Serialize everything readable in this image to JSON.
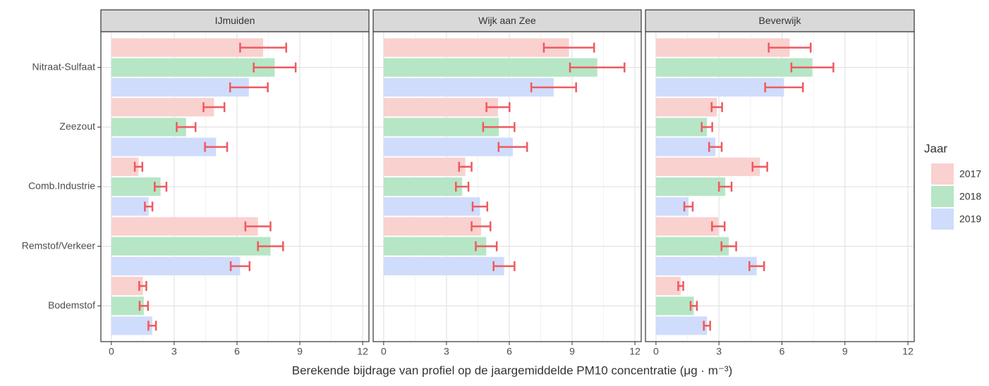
{
  "chart_data": {
    "type": "bar",
    "orientation": "horizontal",
    "xlabel": "Berekende bijdrage van profiel op de jaargemiddelde PM10 concentratie (μg · m⁻³)",
    "legend_title": "Jaar",
    "categories": [
      "Nitraat-Sulfaat",
      "Zeezout",
      "Comb.Industrie",
      "Remstof/Verkeer",
      "Bodemstof"
    ],
    "xlim": [
      -0.5,
      12.3
    ],
    "xticks": [
      0,
      3,
      6,
      9,
      12
    ],
    "grid": true,
    "error_color": "#ef5a5f",
    "series": [
      {
        "name": "2017",
        "color": "#f9d1cf"
      },
      {
        "name": "2018",
        "color": "#b6e6c5"
      },
      {
        "name": "2019",
        "color": "#cfdcfb"
      }
    ],
    "facets": [
      {
        "title": "IJmuiden",
        "series": [
          {
            "values": [
              7.25,
              4.9,
              1.3,
              7.0,
              1.5
            ],
            "errors": [
              1.1,
              0.5,
              0.18,
              0.6,
              0.17
            ]
          },
          {
            "values": [
              7.8,
              3.57,
              2.35,
              7.6,
              1.55
            ],
            "errors": [
              1.0,
              0.45,
              0.28,
              0.6,
              0.2
            ]
          },
          {
            "values": [
              6.57,
              5.0,
              1.78,
              6.15,
              1.95
            ],
            "errors": [
              0.9,
              0.53,
              0.18,
              0.45,
              0.18
            ]
          }
        ]
      },
      {
        "title": "Wijk aan Zee",
        "series": [
          {
            "values": [
              8.85,
              5.46,
              3.9,
              4.65,
              null
            ],
            "errors": [
              1.2,
              0.55,
              0.3,
              0.45,
              null
            ]
          },
          {
            "values": [
              10.2,
              5.5,
              3.75,
              4.9,
              null
            ],
            "errors": [
              1.3,
              0.75,
              0.3,
              0.5,
              null
            ]
          },
          {
            "values": [
              8.12,
              6.17,
              4.6,
              5.75,
              null
            ],
            "errors": [
              1.07,
              0.68,
              0.35,
              0.5,
              null
            ]
          }
        ]
      },
      {
        "title": "Beverwijk",
        "series": [
          {
            "values": [
              6.37,
              2.9,
              4.95,
              2.97,
              1.18
            ],
            "errors": [
              1.0,
              0.25,
              0.35,
              0.3,
              0.12
            ]
          },
          {
            "values": [
              7.45,
              2.43,
              3.3,
              3.47,
              1.8
            ],
            "errors": [
              1.0,
              0.25,
              0.3,
              0.35,
              0.15
            ]
          },
          {
            "values": [
              6.1,
              2.83,
              1.55,
              4.8,
              2.43
            ],
            "errors": [
              0.9,
              0.3,
              0.2,
              0.35,
              0.15
            ]
          }
        ]
      }
    ]
  }
}
